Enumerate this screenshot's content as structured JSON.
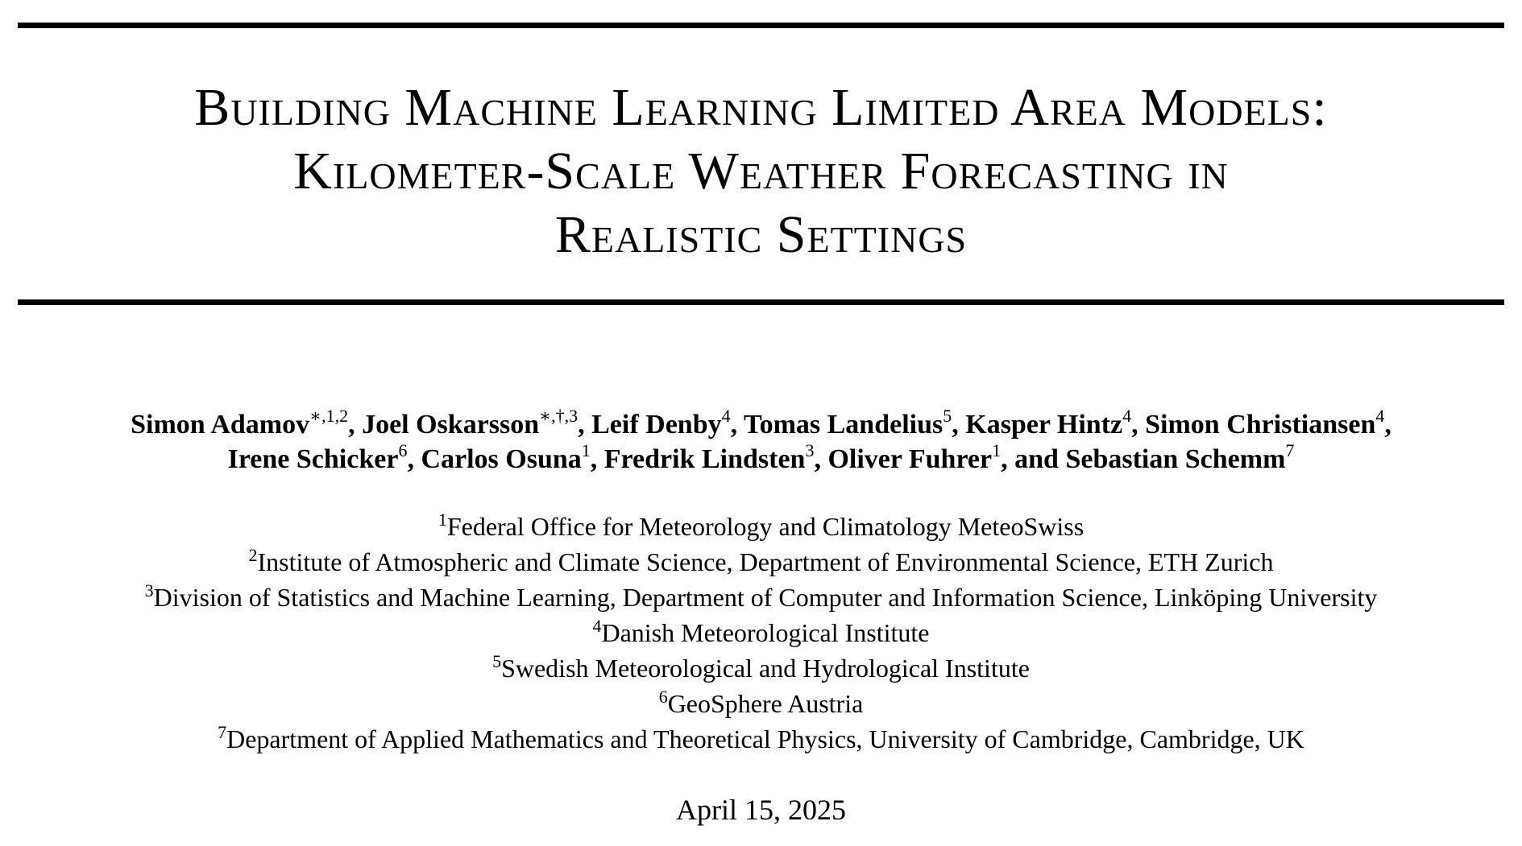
{
  "title": {
    "lines": [
      "Building Machine Learning Limited Area Models:",
      "Kilometer-Scale Weather Forecasting in",
      "Realistic Settings"
    ]
  },
  "authors": {
    "line1": [
      {
        "name": "Simon Adamov",
        "sup": "∗,1,2",
        "sep": ", "
      },
      {
        "name": "Joel Oskarsson",
        "sup": "∗,†,3",
        "sep": ", "
      },
      {
        "name": "Leif Denby",
        "sup": "4",
        "sep": ", "
      },
      {
        "name": "Tomas Landelius",
        "sup": "5",
        "sep": ", "
      },
      {
        "name": "Kasper Hintz",
        "sup": "4",
        "sep": ", "
      },
      {
        "name": "Simon Christiansen",
        "sup": "4",
        "sep": ","
      }
    ],
    "line2": [
      {
        "name": "Irene Schicker",
        "sup": "6",
        "sep": ", "
      },
      {
        "name": "Carlos Osuna",
        "sup": "1",
        "sep": ", "
      },
      {
        "name": "Fredrik Lindsten",
        "sup": "3",
        "sep": ", "
      },
      {
        "name": "Oliver Fuhrer",
        "sup": "1",
        "sep": ", and "
      },
      {
        "name": "Sebastian Schemm",
        "sup": "7",
        "sep": ""
      }
    ]
  },
  "affiliations": [
    {
      "sup": "1",
      "text": "Federal Office for Meteorology and Climatology MeteoSwiss"
    },
    {
      "sup": "2",
      "text": "Institute of Atmospheric and Climate Science, Department of Environmental Science, ETH Zurich"
    },
    {
      "sup": "3",
      "text": "Division of Statistics and Machine Learning, Department of Computer and Information Science, Linköping University"
    },
    {
      "sup": "4",
      "text": "Danish Meteorological Institute"
    },
    {
      "sup": "5",
      "text": "Swedish Meteorological and Hydrological Institute"
    },
    {
      "sup": "6",
      "text": "GeoSphere Austria"
    },
    {
      "sup": "7",
      "text": "Department of Applied Mathematics and Theoretical Physics, University of Cambridge, Cambridge, UK"
    }
  ],
  "date": "April 15, 2025"
}
